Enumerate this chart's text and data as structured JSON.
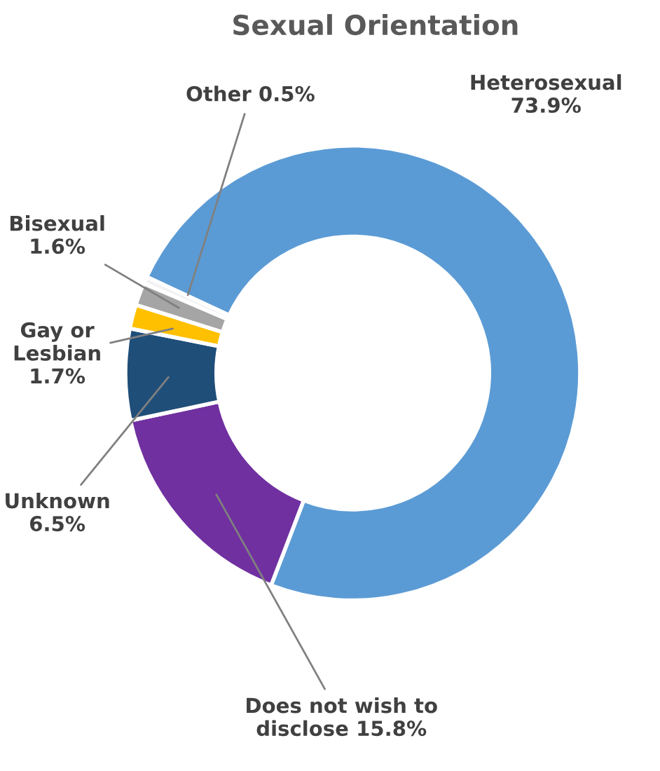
{
  "chart_data": {
    "type": "donut",
    "title": "Sexual Orientation",
    "categories": [
      "Heterosexual",
      "Does not wish to disclose",
      "Unknown",
      "Gay or Lesbian",
      "Bisexual",
      "Other"
    ],
    "values": [
      73.9,
      15.8,
      6.5,
      1.7,
      1.6,
      0.5
    ],
    "value_labels": [
      "73.9%",
      "15.8%",
      "6.5%",
      "1.7%",
      "1.6%",
      "0.5%"
    ],
    "colors": [
      "#5b9bd5",
      "#7030a0",
      "#1f4e79",
      "#ffc000",
      "#a5a5a5",
      "#f2f2f2"
    ],
    "legend": false
  }
}
